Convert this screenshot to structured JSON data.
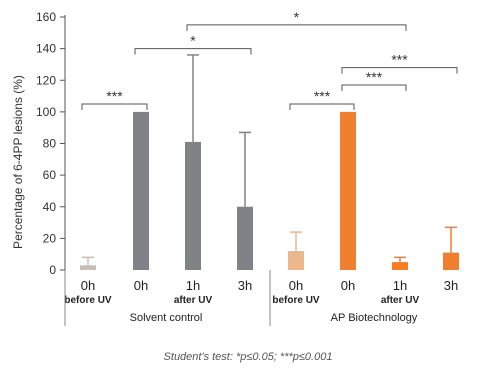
{
  "chart_data": {
    "type": "bar",
    "ylabel": "Percentage of 6-4PP lesions (%)",
    "ylim": [
      0,
      160
    ],
    "yticks": [
      0,
      20,
      40,
      60,
      80,
      100,
      120,
      140,
      160
    ],
    "categories": [
      "0h",
      "0h",
      "1h",
      "3h",
      "0h",
      "0h",
      "1h",
      "3h"
    ],
    "subcategories": [
      "before UV",
      "",
      "after UV",
      "",
      "before UV",
      "",
      "after UV",
      ""
    ],
    "values": [
      3,
      100,
      81,
      40,
      12,
      100,
      5,
      11
    ],
    "error": [
      5,
      0,
      55,
      47,
      12,
      0,
      3,
      16
    ],
    "colors": [
      "#c8bfb6",
      "#808287",
      "#808287",
      "#808287",
      "#e9b88e",
      "#f07f2e",
      "#f07f2e",
      "#f07f2e"
    ],
    "groups": [
      {
        "name": "Solvent control",
        "members": [
          0,
          1,
          2,
          3
        ]
      },
      {
        "name": "AP Biotechnology",
        "members": [
          4,
          5,
          6,
          7
        ]
      }
    ],
    "significance": [
      {
        "from": 0,
        "to": 1,
        "y": 105,
        "label": "***"
      },
      {
        "from": 1,
        "to": 3,
        "y": 140,
        "label": "*"
      },
      {
        "from": 2,
        "to": 6,
        "y": 155,
        "label": "*"
      },
      {
        "from": 4,
        "to": 5,
        "y": 105,
        "label": "***"
      },
      {
        "from": 5,
        "to": 6,
        "y": 117,
        "label": "***"
      },
      {
        "from": 5,
        "to": 7,
        "y": 128,
        "label": "***"
      }
    ],
    "footnote": "Student's test: *p≤0.05; ***p≤0.001"
  }
}
